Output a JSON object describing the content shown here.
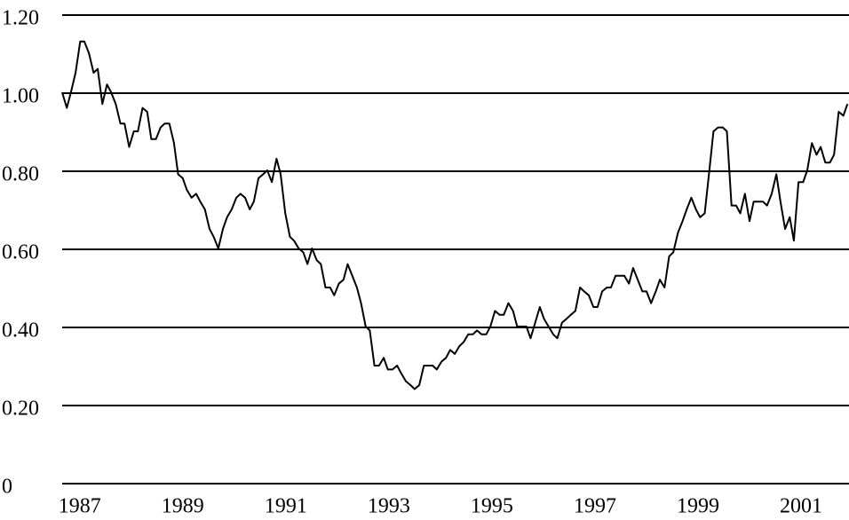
{
  "chart_data": {
    "type": "line",
    "color": "#000000",
    "grid": true,
    "xlim": [
      1986.66,
      2001.93
    ],
    "xticks": [
      1987,
      1989,
      1991,
      1993,
      1995,
      1997,
      1999,
      2001
    ],
    "ylim": [
      0,
      1.2
    ],
    "yticks": [
      0,
      {
        "value": 0.2,
        "label": "0.20"
      },
      {
        "value": 0.4,
        "label": "0.40"
      },
      {
        "value": 0.6,
        "label": "0.60"
      },
      {
        "value": 0.8,
        "label": "0.80"
      },
      {
        "value": 1.0,
        "label": "1.00"
      },
      {
        "value": 1.2,
        "label": "1.20"
      }
    ],
    "x": [
      1986.66,
      1986.75,
      1986.83,
      1986.92,
      1987.01,
      1987.09,
      1987.18,
      1987.27,
      1987.35,
      1987.44,
      1987.53,
      1987.61,
      1987.7,
      1987.79,
      1987.87,
      1987.96,
      1988.05,
      1988.13,
      1988.22,
      1988.31,
      1988.39,
      1988.48,
      1988.57,
      1988.65,
      1988.74,
      1988.83,
      1988.91,
      1989.0,
      1989.08,
      1989.17,
      1989.26,
      1989.34,
      1989.43,
      1989.52,
      1989.6,
      1989.69,
      1989.78,
      1989.86,
      1989.95,
      1990.04,
      1990.12,
      1990.21,
      1990.3,
      1990.38,
      1990.47,
      1990.56,
      1990.64,
      1990.73,
      1990.82,
      1990.9,
      1990.99,
      1991.08,
      1991.16,
      1991.25,
      1991.34,
      1991.42,
      1991.51,
      1991.6,
      1991.68,
      1991.77,
      1991.86,
      1991.94,
      1992.03,
      1992.12,
      1992.2,
      1992.29,
      1992.38,
      1992.46,
      1992.55,
      1992.63,
      1992.72,
      1992.81,
      1992.9,
      1992.98,
      1993.07,
      1993.16,
      1993.24,
      1993.33,
      1993.42,
      1993.5,
      1993.59,
      1993.68,
      1993.76,
      1993.85,
      1993.93,
      1994.02,
      1994.11,
      1994.19,
      1994.28,
      1994.37,
      1994.45,
      1994.54,
      1994.63,
      1994.71,
      1994.8,
      1994.89,
      1994.97,
      1995.06,
      1995.15,
      1995.23,
      1995.32,
      1995.41,
      1995.49,
      1995.58,
      1995.67,
      1995.75,
      1995.84,
      1995.93,
      1996.01,
      1996.1,
      1996.19,
      1996.27,
      1996.36,
      1996.45,
      1996.53,
      1996.62,
      1996.71,
      1996.79,
      1996.88,
      1996.97,
      1997.05,
      1997.14,
      1997.23,
      1997.31,
      1997.4,
      1997.49,
      1997.57,
      1997.66,
      1997.74,
      1997.83,
      1997.92,
      1998.0,
      1998.09,
      1998.18,
      1998.26,
      1998.35,
      1998.44,
      1998.52,
      1998.61,
      1998.7,
      1998.78,
      1998.87,
      1998.96,
      1999.04,
      1999.13,
      1999.22,
      1999.3,
      1999.39,
      1999.48,
      1999.56,
      1999.65,
      1999.74,
      1999.82,
      1999.91,
      2000.0,
      2000.08,
      2000.17,
      2000.26,
      2000.34,
      2000.43,
      2000.52,
      2000.6,
      2000.69,
      2000.78,
      2000.86,
      2000.95,
      2001.04,
      2001.12,
      2001.21,
      2001.3,
      2001.38,
      2001.47,
      2001.56,
      2001.64,
      2001.73,
      2001.82,
      2001.9
    ],
    "values": [
      1.0,
      0.96,
      1.0,
      1.05,
      1.13,
      1.13,
      1.1,
      1.05,
      1.06,
      0.97,
      1.02,
      1.0,
      0.97,
      0.92,
      0.92,
      0.86,
      0.9,
      0.9,
      0.96,
      0.95,
      0.88,
      0.88,
      0.91,
      0.92,
      0.92,
      0.87,
      0.79,
      0.78,
      0.75,
      0.73,
      0.74,
      0.72,
      0.7,
      0.65,
      0.63,
      0.6,
      0.65,
      0.68,
      0.7,
      0.73,
      0.74,
      0.73,
      0.7,
      0.72,
      0.78,
      0.79,
      0.8,
      0.77,
      0.83,
      0.79,
      0.69,
      0.63,
      0.62,
      0.6,
      0.59,
      0.56,
      0.6,
      0.57,
      0.56,
      0.5,
      0.5,
      0.48,
      0.51,
      0.52,
      0.56,
      0.53,
      0.5,
      0.46,
      0.4,
      0.39,
      0.3,
      0.3,
      0.32,
      0.29,
      0.29,
      0.3,
      0.28,
      0.26,
      0.25,
      0.24,
      0.25,
      0.3,
      0.3,
      0.3,
      0.29,
      0.31,
      0.32,
      0.34,
      0.33,
      0.35,
      0.36,
      0.38,
      0.38,
      0.39,
      0.38,
      0.38,
      0.4,
      0.44,
      0.43,
      0.43,
      0.46,
      0.44,
      0.4,
      0.4,
      0.4,
      0.37,
      0.41,
      0.45,
      0.42,
      0.4,
      0.38,
      0.37,
      0.41,
      0.42,
      0.43,
      0.44,
      0.5,
      0.49,
      0.48,
      0.45,
      0.45,
      0.49,
      0.5,
      0.5,
      0.53,
      0.53,
      0.53,
      0.51,
      0.55,
      0.52,
      0.49,
      0.49,
      0.46,
      0.49,
      0.52,
      0.5,
      0.58,
      0.59,
      0.64,
      0.67,
      0.7,
      0.73,
      0.7,
      0.68,
      0.69,
      0.8,
      0.9,
      0.91,
      0.91,
      0.9,
      0.71,
      0.71,
      0.69,
      0.74,
      0.67,
      0.72,
      0.72,
      0.72,
      0.71,
      0.74,
      0.79,
      0.72,
      0.65,
      0.68,
      0.62,
      0.77,
      0.77,
      0.8,
      0.87,
      0.84,
      0.86,
      0.82,
      0.82,
      0.84,
      0.95,
      0.94,
      0.97
    ]
  }
}
